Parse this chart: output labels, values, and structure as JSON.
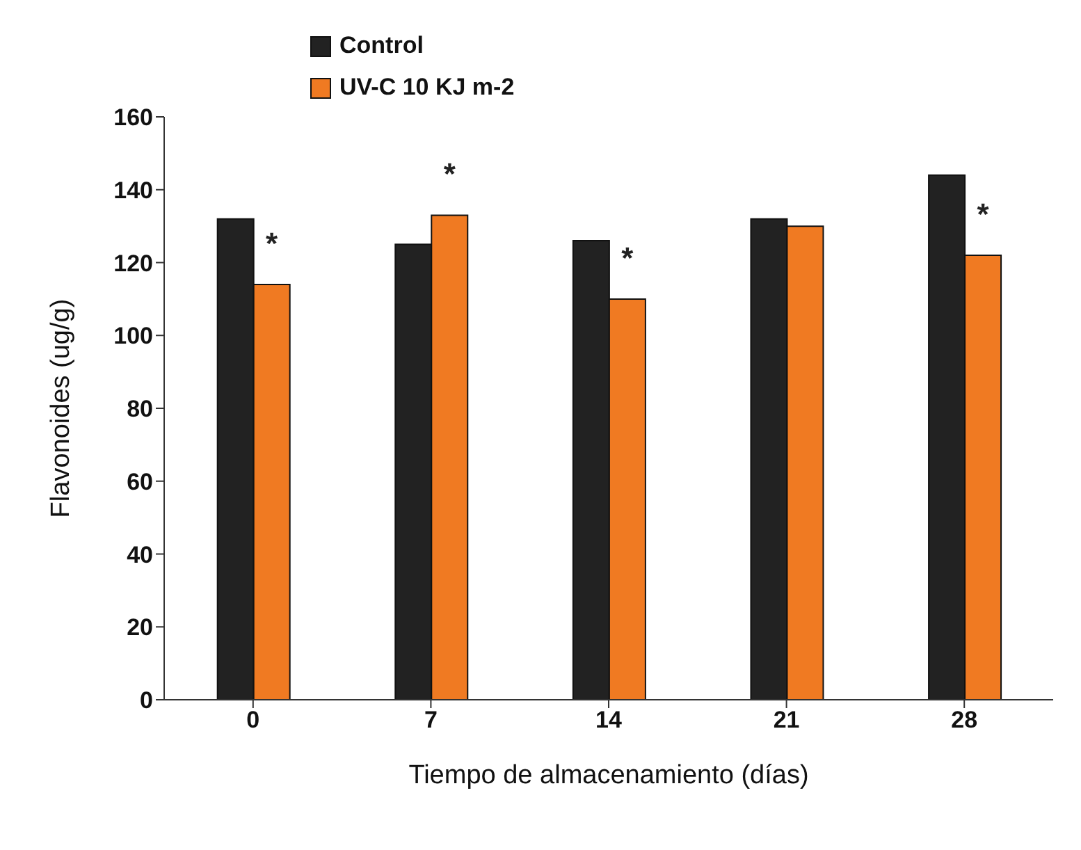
{
  "chart_data": {
    "type": "bar",
    "xlabel": "Tiempo de almacenamiento (días)",
    "ylabel": "Flavonoides (ug/g)",
    "categories": [
      "0",
      "7",
      "14",
      "21",
      "28"
    ],
    "series": [
      {
        "name": "Control",
        "color": "#222222",
        "values": [
          132,
          125,
          126,
          132,
          144
        ]
      },
      {
        "name": "UV-C 10 KJ m-2",
        "color": "#f07a22",
        "values": [
          114,
          133,
          110,
          130,
          122
        ]
      }
    ],
    "ylim": [
      0,
      160
    ],
    "yticks": [
      0,
      20,
      40,
      60,
      80,
      100,
      120,
      140,
      160
    ],
    "grid": false,
    "legend": "top left",
    "annotations": [
      {
        "text": "*",
        "x": "0",
        "y": 114
      },
      {
        "text": "*",
        "x": "7",
        "y": 133
      },
      {
        "text": "*",
        "x": "14",
        "y": 110
      },
      {
        "text": "*",
        "x": "28",
        "y": 122
      }
    ]
  }
}
